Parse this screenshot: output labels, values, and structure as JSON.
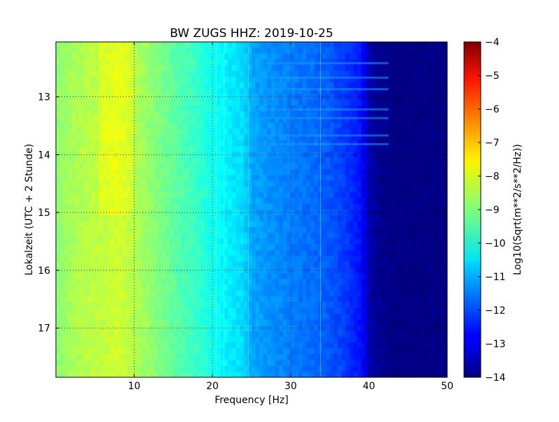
{
  "chart_data": {
    "type": "heatmap",
    "title": "BW ZUGS HHZ: 2019-10-25",
    "xlabel": "Frequency [Hz]",
    "ylabel": "Lokalzeit (UTC + 2 Stunde)",
    "xlim": [
      0,
      50
    ],
    "ylim": [
      17.85,
      12.05
    ],
    "x_ticks": [
      10,
      20,
      30,
      40,
      50
    ],
    "y_ticks": [
      13,
      14,
      15,
      16,
      17
    ],
    "grid": true,
    "colormap": "jet",
    "colorbar": {
      "label": "Log10(Sqrt(m**2/s**2/Hz))",
      "range": [
        -14,
        -4
      ],
      "ticks": [
        -4,
        -5,
        -6,
        -7,
        -8,
        -9,
        -10,
        -11,
        -12,
        -13,
        -14
      ]
    },
    "profile": {
      "frequency_hz": [
        0,
        2,
        5,
        8,
        10,
        12,
        15,
        18,
        20,
        22,
        24,
        25,
        27,
        30,
        33,
        35,
        37,
        38,
        39,
        40,
        41,
        43,
        50
      ],
      "log_psd": [
        -8.9,
        -8.6,
        -8.4,
        -8.2,
        -8.5,
        -8.8,
        -9.3,
        -9.7,
        -10.1,
        -10.4,
        -10.6,
        -11.1,
        -11.3,
        -11.5,
        -11.7,
        -11.9,
        -12.2,
        -12.4,
        -12.6,
        -13.5,
        -13.8,
        -14,
        -14
      ]
    }
  }
}
